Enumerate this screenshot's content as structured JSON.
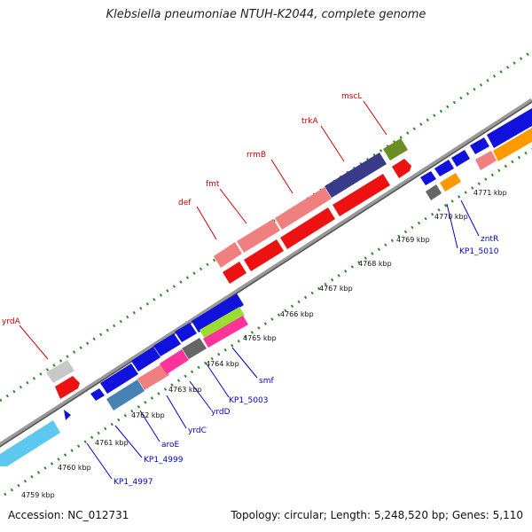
{
  "title": "Klebsiella pneumoniae NTUH-K2044, complete genome",
  "footer": {
    "accession": "Accession: NC_012731",
    "stats": "Topology: circular; Length: 5,248,520 bp; Genes: 5,110"
  },
  "tick_labels": [
    "4759 kbp",
    "4760 kbp",
    "4761 kbp",
    "4762 kbp",
    "4763 kbp",
    "4764 kbp",
    "4765 kbp",
    "4766 kbp",
    "4767 kbp",
    "4768 kbp",
    "4769 kbp",
    "4770 kbp",
    "4771 kbp"
  ],
  "genes_top": [
    "yrdA",
    "def",
    "fmt",
    "rrmB",
    "trkA",
    "mscL"
  ],
  "genes_bottom": [
    "KP1_4997",
    "KP1_4999",
    "aroE",
    "yrdC",
    "yrdD",
    "KP1_5003",
    "smf",
    "KP1_5010",
    "zntR"
  ],
  "colors": {
    "backbone": "#7a7a7a",
    "tick_green": "#2e8b2e",
    "red_gene": "#ee1111",
    "pink_gene": "#f08080",
    "blue_gene": "#1111dd",
    "navy_gene": "#3a3a8a",
    "olive_gene": "#6b8e23",
    "cyan_gene": "#5cc8f0",
    "orange_gene": "#ff9900",
    "magenta_gene": "#ff3399",
    "lime_gene": "#99dd33",
    "gray_gene": "#666666",
    "steel_gene": "#4682b4",
    "light_gray_gene": "#c8c8c8"
  }
}
